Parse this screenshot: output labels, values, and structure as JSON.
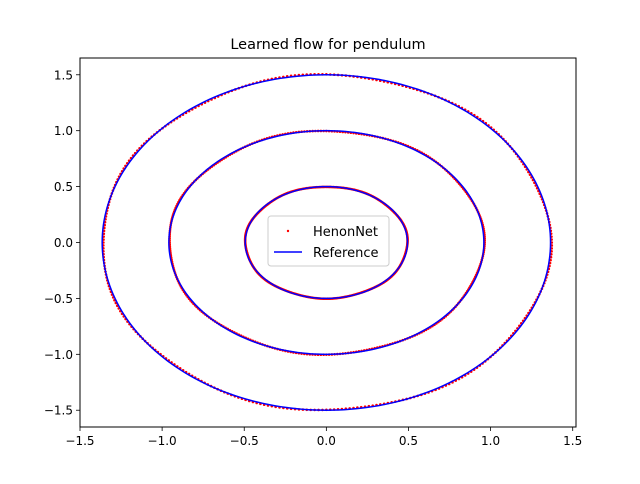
{
  "chart_data": {
    "type": "scatter",
    "title": "Learned flow for pendulum",
    "xlabel": "",
    "ylabel": "",
    "xlim": [
      -1.5,
      1.52
    ],
    "ylim": [
      -1.65,
      1.65
    ],
    "xticks": [
      -1.5,
      -1.0,
      -0.5,
      0.0,
      0.5,
      1.0,
      1.5
    ],
    "xtick_labels": [
      "−1.5",
      "−1.0",
      "−0.5",
      "0.0",
      "0.5",
      "1.0",
      "1.5"
    ],
    "yticks": [
      -1.5,
      -1.0,
      -0.5,
      0.0,
      0.5,
      1.0,
      1.5
    ],
    "ytick_labels": [
      "−1.5",
      "−1.0",
      "−0.5",
      "0.0",
      "0.5",
      "1.0",
      "1.5"
    ],
    "grid": false,
    "legend_position": "center",
    "series": [
      {
        "name": "HenonNet",
        "kind": "points",
        "color": "#ff0000",
        "orbits": [
          {
            "q_max": 0.494,
            "p_max": 0.5
          },
          {
            "q_max": 0.959,
            "p_max": 1.0
          },
          {
            "q_max": 1.365,
            "p_max": 1.5
          }
        ]
      },
      {
        "name": "Reference",
        "kind": "line",
        "color": "#0000ff",
        "orbits": [
          {
            "q_max": 0.494,
            "p_max": 0.5
          },
          {
            "q_max": 0.959,
            "p_max": 1.0
          },
          {
            "q_max": 1.365,
            "p_max": 1.5
          }
        ]
      }
    ]
  }
}
